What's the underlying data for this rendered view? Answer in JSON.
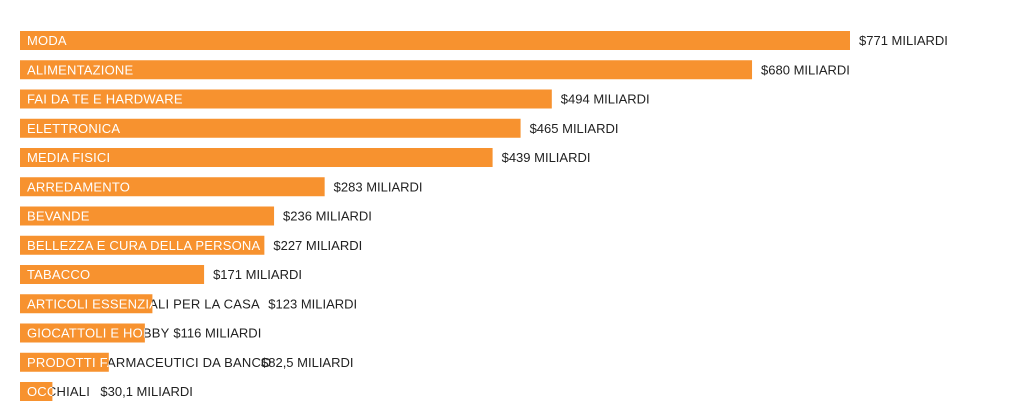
{
  "chart_data": {
    "type": "bar",
    "orientation": "horizontal",
    "bar_color": "#f7922f",
    "label_inside_color": "#ffffff",
    "label_outside_color": "#222222",
    "categories": [
      "MODA",
      "ALIMENTAZIONE",
      "FAI DA TE E HARDWARE",
      "ELETTRONICA",
      "MEDIA FISICI",
      "ARREDAMENTO",
      "BEVANDE",
      "BELLEZZA E CURA DELLA PERSONA",
      "TABACCO",
      "ARTICOLI ESSENZIALI PER LA CASA",
      "GIOCATTOLI E HOBBY",
      "PRODOTTI FARMACEUTICI DA BANCO",
      "OCCHIALI"
    ],
    "values": [
      771,
      680,
      494,
      465,
      439,
      283,
      236,
      227,
      171,
      123,
      116,
      82.5,
      30.1
    ],
    "value_labels": [
      "$771 MILIARDI",
      "$680 MILIARDI",
      "$494 MILIARDI",
      "$465 MILIARDI",
      "$439 MILIARDI",
      "$283 MILIARDI",
      "$236 MILIARDI",
      "$227 MILIARDI",
      "$171 MILIARDI",
      "$123 MILIARDI",
      "$116 MILIARDI",
      "$82,5 MILIARDI",
      "$30,1 MILIARDI"
    ]
  }
}
